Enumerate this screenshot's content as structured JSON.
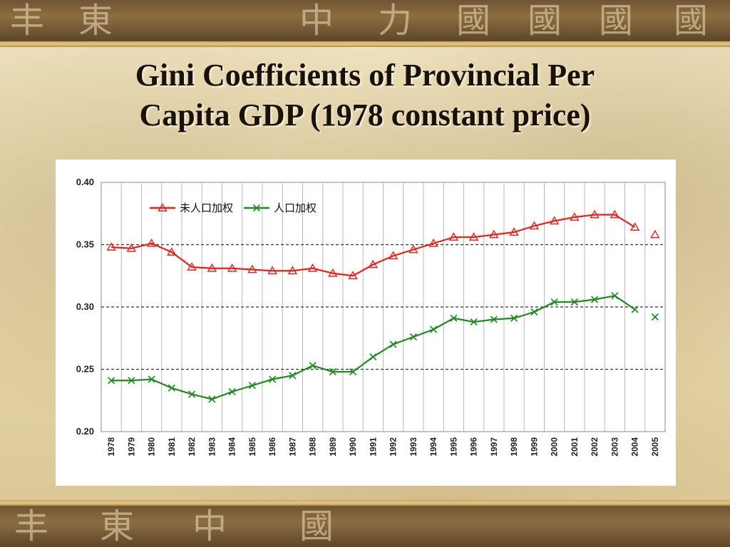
{
  "slide": {
    "title_line1": "Gini Coefficients of Provincial Per",
    "title_line2": "Capita GDP (1978 constant price)"
  },
  "decor": {
    "glyphs": [
      "丰",
      "東",
      "中",
      "力",
      "國",
      "國",
      "國",
      "國"
    ]
  },
  "chart_data": {
    "type": "line",
    "categories": [
      "1978",
      "1979",
      "1980",
      "1981",
      "1982",
      "1983",
      "1984",
      "1985",
      "1986",
      "1987",
      "1988",
      "1989",
      "1990",
      "1991",
      "1992",
      "1993",
      "1994",
      "1995",
      "1996",
      "1997",
      "1998",
      "1999",
      "2000",
      "2001",
      "2002",
      "2003",
      "2004",
      "2005"
    ],
    "ylim": [
      0.2,
      0.4
    ],
    "yticks": [
      "0.40",
      "0.35",
      "0.30",
      "0.25",
      "0.20"
    ],
    "ytick_values": [
      0.4,
      0.35,
      0.3,
      0.25,
      0.2
    ],
    "grid": "vertical solid lines at each year; dashed horizontal lines at 0.25, 0.30, 0.35",
    "legend_position": "top-left",
    "series": [
      {
        "name": "未人口加权",
        "color": "#e8211b",
        "marker": "triangle",
        "values": [
          0.348,
          0.347,
          0.351,
          0.344,
          0.332,
          0.331,
          0.331,
          0.33,
          0.329,
          0.329,
          0.331,
          0.327,
          0.325,
          0.334,
          0.341,
          0.346,
          0.351,
          0.356,
          0.356,
          0.358,
          0.36,
          0.365,
          0.369,
          0.372,
          0.374,
          0.374,
          0.364,
          0.358
        ],
        "connected_until": "2004"
      },
      {
        "name": "人口加权",
        "color": "#1f8a1f",
        "marker": "x",
        "values": [
          0.241,
          0.241,
          0.242,
          0.235,
          0.23,
          0.226,
          0.232,
          0.237,
          0.242,
          0.245,
          0.253,
          0.248,
          0.248,
          0.26,
          0.27,
          0.276,
          0.282,
          0.291,
          0.288,
          0.29,
          0.291,
          0.296,
          0.304,
          0.304,
          0.306,
          0.309,
          0.298,
          0.292
        ],
        "connected_until": "2004"
      }
    ]
  }
}
